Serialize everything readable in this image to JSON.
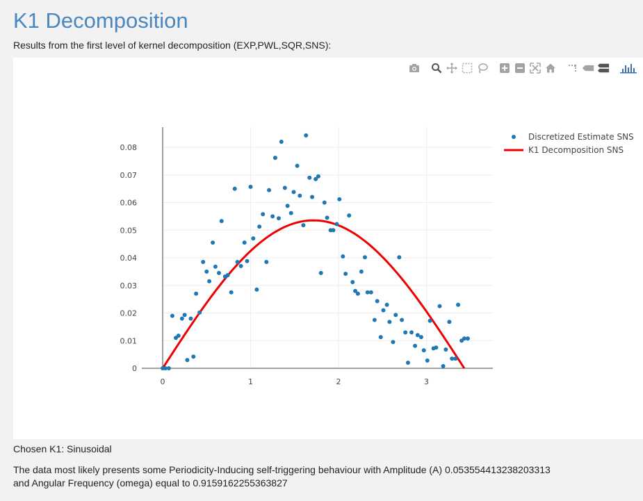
{
  "page": {
    "title": "K1 Decomposition",
    "subtitle": "Results from the first level of kernel decomposition (EXP,PWL,SQR,SNS):",
    "chosen_label": "Chosen K1: Sinusoidal",
    "description_line1": "The data most likely presents some Periodicity-Inducing self-triggering behaviour with Amplitude (A) 0.053554413238203313",
    "description_line2": "and Angular Frequency (omega) equal to 0.9159162255363827"
  },
  "modebar": {
    "icons": [
      "camera-icon",
      "zoom-icon",
      "pan-icon",
      "box-select-icon",
      "lasso-select-icon",
      "zoom-in-icon",
      "zoom-out-icon",
      "autoscale-icon",
      "reset-axes-icon",
      "spike-lines-icon",
      "hover-closest-icon",
      "hover-compare-icon",
      "plotly-logo-icon"
    ]
  },
  "chart_data": {
    "type": "scatter",
    "xlim": [
      0,
      3.75
    ],
    "ylim": [
      0,
      0.089
    ],
    "x_ticks": [
      0,
      1,
      2,
      3
    ],
    "x_tick_labels": [
      "0",
      "1",
      "2",
      "3"
    ],
    "y_ticks": [
      0,
      0.01,
      0.02,
      0.03,
      0.04,
      0.05,
      0.06,
      0.07,
      0.08
    ],
    "y_tick_labels": [
      "0",
      "0.01",
      "0.02",
      "0.03",
      "0.04",
      "0.05",
      "0.06",
      "0.07",
      "0.08"
    ],
    "grid": true,
    "legend_position": "top-right",
    "colors": {
      "scatter": "#1f77b4",
      "line": "#ee0000"
    },
    "series": [
      {
        "name": "Discretized Estimate SNS",
        "mode": "markers",
        "points": [
          [
            0.0,
            0.0
          ],
          [
            0.03,
            0.0
          ],
          [
            0.07,
            0.0
          ],
          [
            0.11,
            0.019
          ],
          [
            0.15,
            0.011
          ],
          [
            0.18,
            0.0118
          ],
          [
            0.22,
            0.018
          ],
          [
            0.25,
            0.0193
          ],
          [
            0.28,
            0.003
          ],
          [
            0.32,
            0.018
          ],
          [
            0.35,
            0.0042
          ],
          [
            0.38,
            0.027
          ],
          [
            0.42,
            0.0202
          ],
          [
            0.46,
            0.0385
          ],
          [
            0.5,
            0.035
          ],
          [
            0.53,
            0.0315
          ],
          [
            0.57,
            0.0455
          ],
          [
            0.6,
            0.0368
          ],
          [
            0.64,
            0.0345
          ],
          [
            0.67,
            0.0533
          ],
          [
            0.71,
            0.0332
          ],
          [
            0.74,
            0.0337
          ],
          [
            0.78,
            0.0275
          ],
          [
            0.82,
            0.065
          ],
          [
            0.85,
            0.0385
          ],
          [
            0.89,
            0.037
          ],
          [
            0.93,
            0.0455
          ],
          [
            0.96,
            0.0388
          ],
          [
            1.0,
            0.0657
          ],
          [
            1.03,
            0.047
          ],
          [
            1.07,
            0.0285
          ],
          [
            1.1,
            0.0513
          ],
          [
            1.14,
            0.0558
          ],
          [
            1.18,
            0.0385
          ],
          [
            1.21,
            0.0645
          ],
          [
            1.25,
            0.055
          ],
          [
            1.28,
            0.0762
          ],
          [
            1.32,
            0.0543
          ],
          [
            1.35,
            0.082
          ],
          [
            1.39,
            0.0653
          ],
          [
            1.42,
            0.0588
          ],
          [
            1.46,
            0.0562
          ],
          [
            1.49,
            0.0638
          ],
          [
            1.53,
            0.0733
          ],
          [
            1.56,
            0.0625
          ],
          [
            1.6,
            0.0518
          ],
          [
            1.63,
            0.0843
          ],
          [
            1.67,
            0.069
          ],
          [
            1.7,
            0.062
          ],
          [
            1.74,
            0.0685
          ],
          [
            1.77,
            0.0695
          ],
          [
            1.8,
            0.0345
          ],
          [
            1.84,
            0.06
          ],
          [
            1.87,
            0.0545
          ],
          [
            1.91,
            0.05
          ],
          [
            1.94,
            0.05
          ],
          [
            1.98,
            0.0522
          ],
          [
            2.01,
            0.0612
          ],
          [
            2.05,
            0.0405
          ],
          [
            2.08,
            0.0342
          ],
          [
            2.12,
            0.0553
          ],
          [
            2.16,
            0.0312
          ],
          [
            2.19,
            0.028
          ],
          [
            2.22,
            0.027
          ],
          [
            2.26,
            0.035
          ],
          [
            2.3,
            0.0402
          ],
          [
            2.33,
            0.0275
          ],
          [
            2.37,
            0.0275
          ],
          [
            2.41,
            0.0175
          ],
          [
            2.44,
            0.0243
          ],
          [
            2.48,
            0.0113
          ],
          [
            2.51,
            0.021
          ],
          [
            2.55,
            0.023
          ],
          [
            2.58,
            0.0168
          ],
          [
            2.62,
            0.0095
          ],
          [
            2.65,
            0.0193
          ],
          [
            2.69,
            0.0402
          ],
          [
            2.72,
            0.0175
          ],
          [
            2.76,
            0.013
          ],
          [
            2.79,
            0.002
          ],
          [
            2.83,
            0.013
          ],
          [
            2.87,
            0.0081
          ],
          [
            2.9,
            0.012
          ],
          [
            2.94,
            0.0113
          ],
          [
            2.97,
            0.0065
          ],
          [
            3.01,
            0.0028
          ],
          [
            3.04,
            0.0172
          ],
          [
            3.08,
            0.0072
          ],
          [
            3.11,
            0.0075
          ],
          [
            3.15,
            0.0225
          ],
          [
            3.19,
            0.0008
          ],
          [
            3.22,
            0.0068
          ],
          [
            3.26,
            0.0168
          ],
          [
            3.29,
            0.0035
          ],
          [
            3.33,
            0.0035
          ],
          [
            3.36,
            0.023
          ],
          [
            3.4,
            0.01
          ],
          [
            3.43,
            0.0108
          ],
          [
            3.47,
            0.0108
          ]
        ]
      },
      {
        "name": "K1 Decomposition SNS",
        "mode": "lines",
        "amplitude": 0.05355441323820331,
        "omega": 0.9159162255363827,
        "x_end": 3.43
      }
    ]
  }
}
